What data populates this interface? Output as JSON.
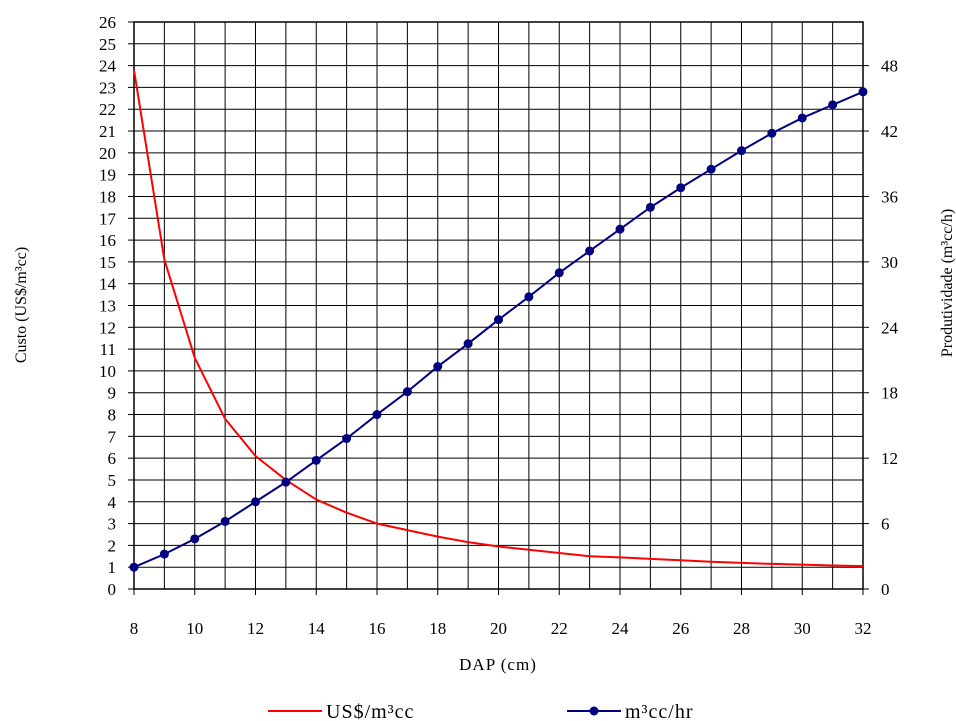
{
  "chart_data": {
    "type": "line",
    "xlabel": "DAP (cm)",
    "ylabel_left": "Custo (US$/m³cc)",
    "ylabel_right": "Produtividade (m³cc/h)",
    "xlim": [
      8,
      32
    ],
    "x_ticks": [
      8,
      10,
      12,
      14,
      16,
      18,
      20,
      22,
      24,
      26,
      28,
      30,
      32
    ],
    "ylim_left": [
      0,
      26
    ],
    "y_ticks_left": [
      0,
      1,
      2,
      3,
      4,
      5,
      6,
      7,
      8,
      9,
      10,
      11,
      12,
      13,
      14,
      15,
      16,
      17,
      18,
      19,
      20,
      21,
      22,
      23,
      24,
      25,
      26
    ],
    "ylim_right": [
      0,
      52
    ],
    "y_ticks_right": [
      0,
      6,
      12,
      18,
      24,
      30,
      36,
      42,
      48
    ],
    "grid": true,
    "legend_position": "bottom",
    "x": [
      8,
      9,
      10,
      11,
      12,
      13,
      14,
      15,
      16,
      17,
      18,
      19,
      20,
      21,
      22,
      23,
      24,
      25,
      26,
      27,
      28,
      29,
      30,
      31,
      32
    ],
    "series": [
      {
        "name": "US$/m³cc",
        "axis": "left",
        "color": "#ff0000",
        "marker": "none",
        "values": [
          23.8,
          15.1,
          10.6,
          7.8,
          6.1,
          5.0,
          4.1,
          3.5,
          3.0,
          2.7,
          2.4,
          2.15,
          1.95,
          1.8,
          1.65,
          1.5,
          1.45,
          1.38,
          1.32,
          1.25,
          1.2,
          1.15,
          1.12,
          1.08,
          1.05
        ]
      },
      {
        "name": "m³cc/hr",
        "axis": "right",
        "color": "#000080",
        "marker": "circle",
        "values": [
          2.0,
          3.2,
          4.6,
          6.2,
          8.0,
          9.8,
          11.8,
          13.8,
          16.0,
          18.1,
          20.4,
          22.5,
          24.7,
          26.8,
          29.0,
          31.0,
          33.0,
          35.0,
          36.8,
          38.5,
          40.2,
          41.8,
          43.2,
          44.4,
          45.6
        ]
      }
    ]
  }
}
